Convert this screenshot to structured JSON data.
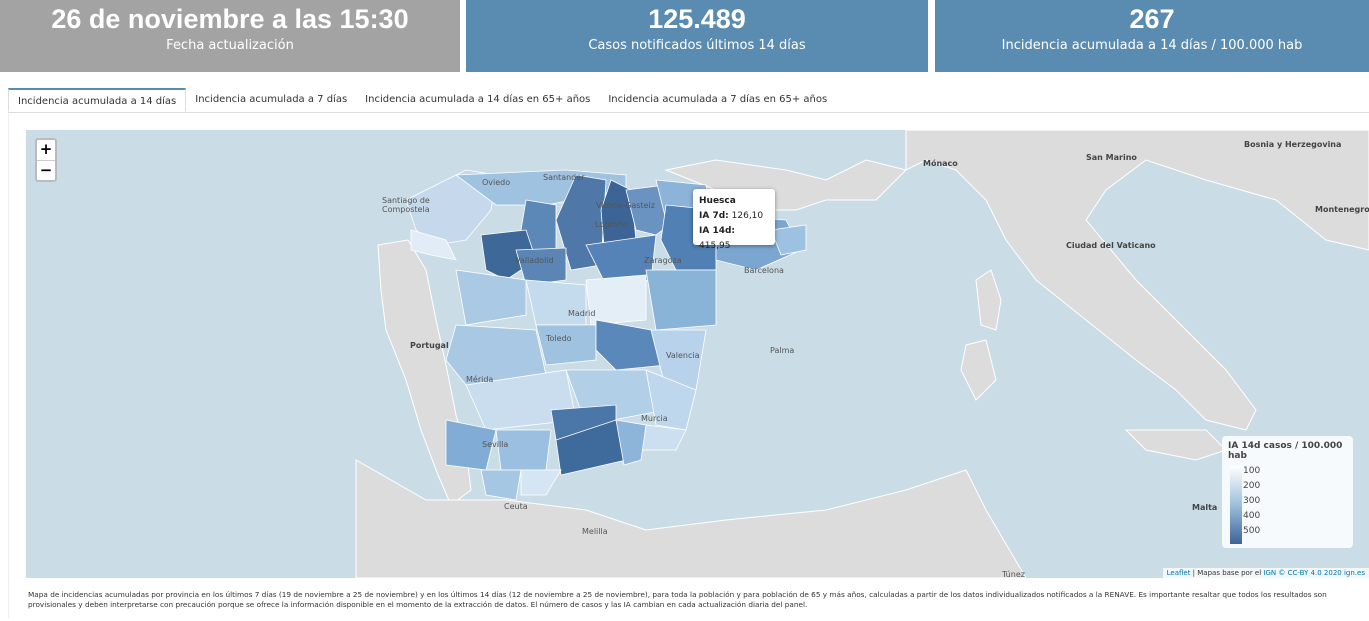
{
  "kpis": [
    {
      "value": "26 de noviembre a las 15:30",
      "label": "Fecha actualización"
    },
    {
      "value": "125.489",
      "label": "Casos notificados últimos 14 días"
    },
    {
      "value": "267",
      "label": "Incidencia acumulada a 14 días / 100.000 hab"
    }
  ],
  "tabs": [
    "Incidencia acumulada a 14 días",
    "Incidencia acumulada a 7 días",
    "Incidencia acumulada a 14 días en 65+ años",
    "Incidencia acumulada a 7 días en 65+ años"
  ],
  "map": {
    "zoom_in": "+",
    "zoom_out": "−",
    "places": {
      "santander": "Santander",
      "oviedo": "Oviedo",
      "santiago": "Santiago de Compostela",
      "vitoria": "Vitoria-Gasteiz",
      "logrono": "Logroño",
      "valladolid": "Valladolid",
      "zaragoza": "Zaragoza",
      "barcelona": "Barcelona",
      "madrid": "Madrid",
      "toledo": "Toledo",
      "valencia": "Valencia",
      "palma": "Palma",
      "merida": "Mérida",
      "murcia": "Murcia",
      "sevilla": "Sevilla",
      "ceuta": "Ceuta",
      "melilla": "Melilla",
      "portugal": "Portugal",
      "monaco": "Mónaco",
      "sanmarino": "San Marino",
      "bosnia": "Bosnia y Herzegovina",
      "montenegro": "Montenegro",
      "vaticano": "Ciudad del Vaticano",
      "malta": "Malta",
      "tunez": "Túnez"
    },
    "tooltip": {
      "name": "Huesca",
      "ia7_label": "IA 7d:",
      "ia7": "126,10",
      "ia14_label": "IA 14d:",
      "ia14": "415,95"
    },
    "legend": {
      "title": "IA 14d casos / 100.000 hab",
      "ticks": [
        "100",
        "200",
        "300",
        "400",
        "500"
      ],
      "colors": [
        "#ffffff",
        "#9dbfdc",
        "#3c6496"
      ]
    },
    "attribution": {
      "leaflet": "Leaflet",
      "text": " | Mapas base por el ",
      "ign": "IGN",
      "cc": " © CC-BY 4.0 2020 ",
      "site": "ign.es"
    }
  },
  "footnote": "Mapa de incidencias acumuladas por provincia en los últimos 7 días (19 de noviembre a 25 de noviembre) y en los últimos 14 días (12 de noviembre a 25 de noviembre), para toda la población y para población de 65 y más años, calculadas a partir de los datos individualizados notificados a la RENAVE. Es importante resaltar que todos los resultados son provisionales y deben interpretarse con precaución porque se ofrece la información disponible en el momento de la extracción de datos. El número de casos y las IA cambian en cada actualización diaria del panel."
}
